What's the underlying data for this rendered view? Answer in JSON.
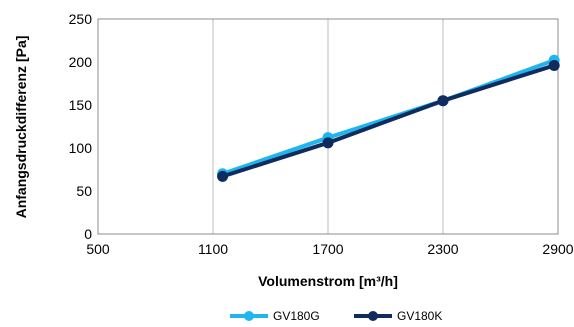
{
  "chart_data": {
    "type": "line",
    "xlabel": "Volumenstrom [m³/h]",
    "ylabel": "Anfangsdruckdifferenz [Pa]",
    "xlim": [
      500,
      2900
    ],
    "ylim": [
      0,
      250
    ],
    "xticks": [
      "500",
      "1100",
      "1700",
      "2300",
      "2900"
    ],
    "yticks": [
      "0",
      "50",
      "100",
      "150",
      "200",
      "250"
    ],
    "grid": "vertical",
    "legend": "bottom",
    "series": [
      {
        "name": "GV180G",
        "color": "#1fb6f0",
        "x": [
          1150,
          1700,
          2300,
          2880
        ],
        "y": [
          70,
          112,
          155,
          202
        ]
      },
      {
        "name": "GV180K",
        "color": "#102c5e",
        "x": [
          1150,
          1700,
          2300,
          2880
        ],
        "y": [
          67,
          106,
          155,
          196
        ]
      }
    ]
  }
}
